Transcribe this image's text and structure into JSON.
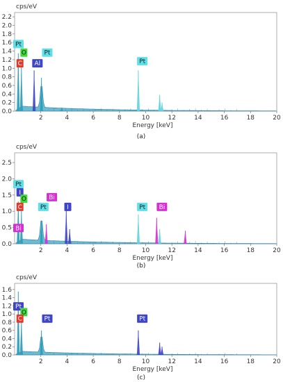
{
  "chart_data": [
    {
      "type": "area",
      "ylabel": "cps/eV",
      "xlabel": "Energy [keV]",
      "caption": "(a)",
      "xlim": [
        0,
        20
      ],
      "ylim": [
        0,
        2.3
      ],
      "xticks": [
        2,
        4,
        6,
        8,
        10,
        12,
        14,
        16,
        18,
        20
      ],
      "yticks": [
        0.0,
        0.2,
        0.4,
        0.6,
        0.8,
        1.0,
        1.2,
        1.4,
        1.6,
        1.8,
        2.0,
        2.2
      ],
      "grid": false,
      "peaks": [
        {
          "x": 0.28,
          "y": 1.35,
          "color": "#2e9db8"
        },
        {
          "x": 0.52,
          "y": 1.05,
          "color": "#2e9db8"
        },
        {
          "x": 1.49,
          "y": 0.95,
          "color": "#3f45c8"
        },
        {
          "x": 2.05,
          "y": 0.78,
          "color": "#2e9db8"
        },
        {
          "x": 3.6,
          "y": 0.08,
          "color": "#2e9db8"
        },
        {
          "x": 9.44,
          "y": 0.95,
          "color": "#61d3dc"
        },
        {
          "x": 11.07,
          "y": 0.38,
          "color": "#61d3dc"
        },
        {
          "x": 11.25,
          "y": 0.2,
          "color": "#61d3dc"
        }
      ],
      "labels": [
        {
          "text": "Pt",
          "x": 0.0,
          "y": 1.5,
          "color": "#5fe0e8"
        },
        {
          "text": "O",
          "x": 0.55,
          "y": 1.3,
          "color": "#3ddb35"
        },
        {
          "text": "C",
          "x": 0.25,
          "y": 1.05,
          "color": "#e23a2a"
        },
        {
          "text": "Al",
          "x": 1.45,
          "y": 1.05,
          "color": "#3f45c8"
        },
        {
          "text": "Pt",
          "x": 2.2,
          "y": 1.3,
          "color": "#5fe0e8"
        },
        {
          "text": "Pt",
          "x": 9.45,
          "y": 1.1,
          "color": "#5fe0e8"
        }
      ]
    },
    {
      "type": "area",
      "ylabel": "cps/eV",
      "xlabel": "Energy [keV]",
      "caption": "(b)",
      "xlim": [
        0,
        20
      ],
      "ylim": [
        0,
        2.8
      ],
      "xticks": [
        2,
        4,
        6,
        8,
        10,
        12,
        14,
        16,
        18,
        20
      ],
      "yticks": [
        0.0,
        0.5,
        1.0,
        1.5,
        2.0,
        2.5
      ],
      "grid": false,
      "peaks": [
        {
          "x": 0.28,
          "y": 1.3,
          "color": "#2e9db8"
        },
        {
          "x": 0.52,
          "y": 1.0,
          "color": "#2e9db8"
        },
        {
          "x": 2.05,
          "y": 0.72,
          "color": "#2e9db8"
        },
        {
          "x": 2.42,
          "y": 0.6,
          "color": "#d630d3"
        },
        {
          "x": 3.94,
          "y": 1.05,
          "color": "#3f45c8"
        },
        {
          "x": 4.2,
          "y": 0.45,
          "color": "#3f45c8"
        },
        {
          "x": 9.44,
          "y": 0.9,
          "color": "#61d3dc"
        },
        {
          "x": 10.84,
          "y": 0.8,
          "color": "#d630d3"
        },
        {
          "x": 11.07,
          "y": 0.45,
          "color": "#61d3dc"
        },
        {
          "x": 13.02,
          "y": 0.4,
          "color": "#d630d3"
        }
      ],
      "labels": [
        {
          "text": "Pt",
          "x": 0.0,
          "y": 1.75,
          "color": "#5fe0e8"
        },
        {
          "text": "I",
          "x": 0.25,
          "y": 1.5,
          "color": "#3f45c8"
        },
        {
          "text": "O",
          "x": 0.55,
          "y": 1.3,
          "color": "#3ddb35"
        },
        {
          "text": "C",
          "x": 0.25,
          "y": 1.05,
          "color": "#e23a2a"
        },
        {
          "text": "Bi",
          "x": 0.0,
          "y": 0.4,
          "color": "#d630d3"
        },
        {
          "text": "Bi",
          "x": 2.55,
          "y": 1.35,
          "color": "#d630d3"
        },
        {
          "text": "Pt",
          "x": 1.9,
          "y": 1.05,
          "color": "#5fe0e8"
        },
        {
          "text": "I",
          "x": 3.9,
          "y": 1.05,
          "color": "#3f45c8"
        },
        {
          "text": "Pt",
          "x": 9.45,
          "y": 1.05,
          "color": "#5fe0e8"
        },
        {
          "text": "Bi",
          "x": 10.95,
          "y": 1.05,
          "color": "#d630d3"
        }
      ]
    },
    {
      "type": "area",
      "ylabel": "cps/eV",
      "xlabel": "Energy [keV]",
      "caption": "(c)",
      "xlim": [
        0,
        20
      ],
      "ylim": [
        0,
        1.75
      ],
      "xticks": [
        2,
        4,
        6,
        8,
        10,
        12,
        14,
        16,
        18,
        20
      ],
      "yticks": [
        0.0,
        0.2,
        0.4,
        0.6,
        0.8,
        1.0,
        1.2,
        1.4,
        1.6
      ],
      "grid": false,
      "peaks": [
        {
          "x": 0.28,
          "y": 1.55,
          "color": "#2e9db8"
        },
        {
          "x": 0.52,
          "y": 0.85,
          "color": "#2e9db8"
        },
        {
          "x": 2.05,
          "y": 0.6,
          "color": "#2e9db8"
        },
        {
          "x": 9.44,
          "y": 0.6,
          "color": "#3f45c8"
        },
        {
          "x": 11.07,
          "y": 0.3,
          "color": "#3f45c8"
        },
        {
          "x": 11.25,
          "y": 0.2,
          "color": "#3f45c8"
        }
      ],
      "labels": [
        {
          "text": "Pt",
          "x": 0.0,
          "y": 1.12,
          "color": "#3f45c8"
        },
        {
          "text": "O",
          "x": 0.55,
          "y": 0.98,
          "color": "#3ddb35"
        },
        {
          "text": "C",
          "x": 0.25,
          "y": 0.82,
          "color": "#e23a2a"
        },
        {
          "text": "Pt",
          "x": 2.2,
          "y": 0.82,
          "color": "#3f45c8"
        },
        {
          "text": "Pt",
          "x": 9.45,
          "y": 0.82,
          "color": "#3f45c8"
        }
      ]
    }
  ]
}
